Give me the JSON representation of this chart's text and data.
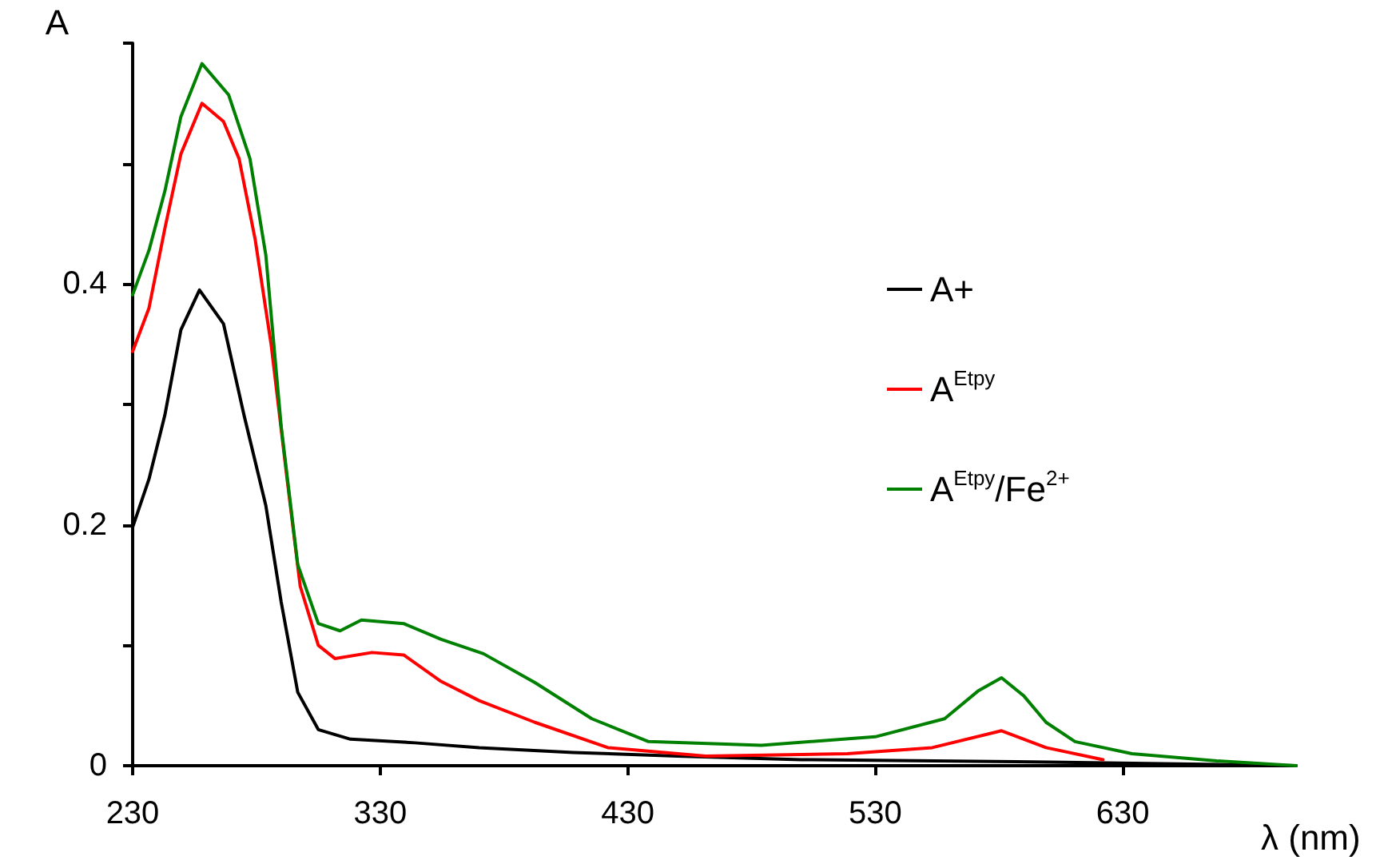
{
  "chart_data": {
    "type": "line",
    "xlabel": "λ (nm)",
    "ylabel": "A",
    "xlim": [
      230,
      700
    ],
    "xticks": [
      230,
      330,
      430,
      530,
      630
    ],
    "ylim": [
      0,
      0.6
    ],
    "yticks": [
      0,
      {
        "value": 0.1,
        "label": null
      },
      0.2,
      {
        "value": 0.3,
        "label": null
      },
      0.4,
      {
        "value": 0.5,
        "label": null
      },
      {
        "value": 0.6,
        "label": null
      }
    ],
    "grid": false,
    "legend": "right",
    "marker": "none",
    "line_style": "solid",
    "series": [
      {
        "name": "A+",
        "color": "#000000",
        "x": [
          230,
          236.6,
          243,
          249.5,
          257,
          266.7,
          275,
          283.8,
          290,
          296.7,
          305,
          318,
          344,
          370,
          408,
          450,
          500,
          600,
          700
        ],
        "values": [
          0.198,
          0.238,
          0.291,
          0.362,
          0.395,
          0.367,
          0.291,
          0.216,
          0.136,
          0.061,
          0.03,
          0.022,
          0.019,
          0.015,
          0.011,
          0.008,
          0.005,
          0.003,
          0
        ]
      },
      {
        "name": "A$^{Etpy}$",
        "color": "#ff0000",
        "x": [
          230,
          236.6,
          243,
          249.5,
          258,
          266.7,
          273,
          279.5,
          286,
          292.4,
          297.7,
          305,
          311.7,
          326.7,
          339.5,
          354.6,
          370,
          392.5,
          422,
          461.5,
          518.7,
          553,
          581,
          599,
          622
        ],
        "values": [
          0.344,
          0.38,
          0.446,
          0.508,
          0.55,
          0.535,
          0.504,
          0.437,
          0.349,
          0.238,
          0.149,
          0.1,
          0.089,
          0.094,
          0.092,
          0.07,
          0.054,
          0.036,
          0.015,
          0.008,
          0.01,
          0.015,
          0.029,
          0.015,
          0.005
        ]
      },
      {
        "name": "A$^{Etpy}$/Fe$^{2+}$",
        "color": "#008000",
        "x": [
          230,
          236.6,
          243,
          249.5,
          258,
          268.8,
          277.4,
          283.8,
          290,
          296.7,
          305,
          313.8,
          322.4,
          339.5,
          354.6,
          371.7,
          392.5,
          415.5,
          438.4,
          484,
          530,
          558,
          571.5,
          581,
          590,
          599,
          610.7,
          633.7,
          668,
          700
        ],
        "values": [
          0.391,
          0.428,
          0.477,
          0.539,
          0.583,
          0.557,
          0.504,
          0.424,
          0.282,
          0.167,
          0.118,
          0.112,
          0.121,
          0.118,
          0.105,
          0.093,
          0.069,
          0.039,
          0.02,
          0.017,
          0.024,
          0.039,
          0.062,
          0.073,
          0.058,
          0.036,
          0.02,
          0.01,
          0.004,
          0
        ]
      }
    ]
  }
}
